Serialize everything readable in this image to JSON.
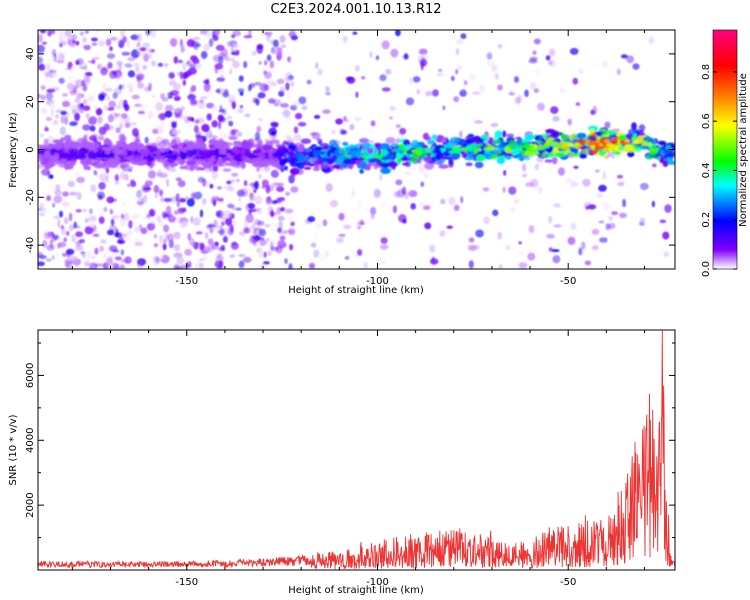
{
  "title": "C2E3.2024.001.10.13.R12",
  "chart_data": [
    {
      "type": "heatmap",
      "title": "",
      "xlabel": "Height of straight line (km)",
      "ylabel": "Frequency (Hz)",
      "xlim": [
        -189,
        -22
      ],
      "ylim": [
        -50,
        50
      ],
      "xticks": [
        -150,
        -100,
        -50
      ],
      "yticks": [
        -40,
        -20,
        0,
        20,
        40
      ],
      "colorbar": {
        "label": "Normalized spectral amplitude",
        "range": [
          0,
          0.97
        ],
        "ticks": [
          0.0,
          0.2,
          0.4,
          0.6,
          0.8
        ],
        "colormap": [
          "#ffffff",
          "#8000ff",
          "#0000ff",
          "#00ffff",
          "#00ff00",
          "#ffff00",
          "#ff8000",
          "#ff0000",
          "#ff0080"
        ]
      },
      "ridge": {
        "x": [
          -125,
          -110,
          -100,
          -90,
          -80,
          -70,
          -60,
          -50,
          -40,
          -30,
          -25
        ],
        "freq": [
          -3,
          -2,
          -3,
          -1,
          0,
          0,
          1,
          2,
          3,
          3,
          -2
        ],
        "amplitude": [
          0.3,
          0.35,
          0.4,
          0.45,
          0.4,
          0.45,
          0.5,
          0.6,
          0.8,
          0.55,
          0.4
        ]
      }
    },
    {
      "type": "line",
      "title": "",
      "xlabel": "Height of straight line (km)",
      "ylabel": "SNR (10 * v/v)",
      "xlim": [
        -189,
        -22
      ],
      "ylim": [
        0,
        7400
      ],
      "xticks": [
        -150,
        -100,
        -50
      ],
      "yticks": [
        2000,
        4000,
        6000
      ],
      "color": "#ee3333",
      "envelope": {
        "x": [
          -189,
          -160,
          -140,
          -130,
          -120,
          -110,
          -100,
          -90,
          -80,
          -70,
          -65,
          -60,
          -55,
          -50,
          -45,
          -40,
          -35,
          -30,
          -28,
          -25,
          -24,
          -23,
          -22
        ],
        "y": [
          280,
          260,
          300,
          350,
          450,
          650,
          1000,
          1300,
          1400,
          1200,
          800,
          900,
          1500,
          1600,
          1700,
          1900,
          3200,
          5200,
          6500,
          7400,
          3000,
          500,
          200
        ]
      }
    }
  ]
}
